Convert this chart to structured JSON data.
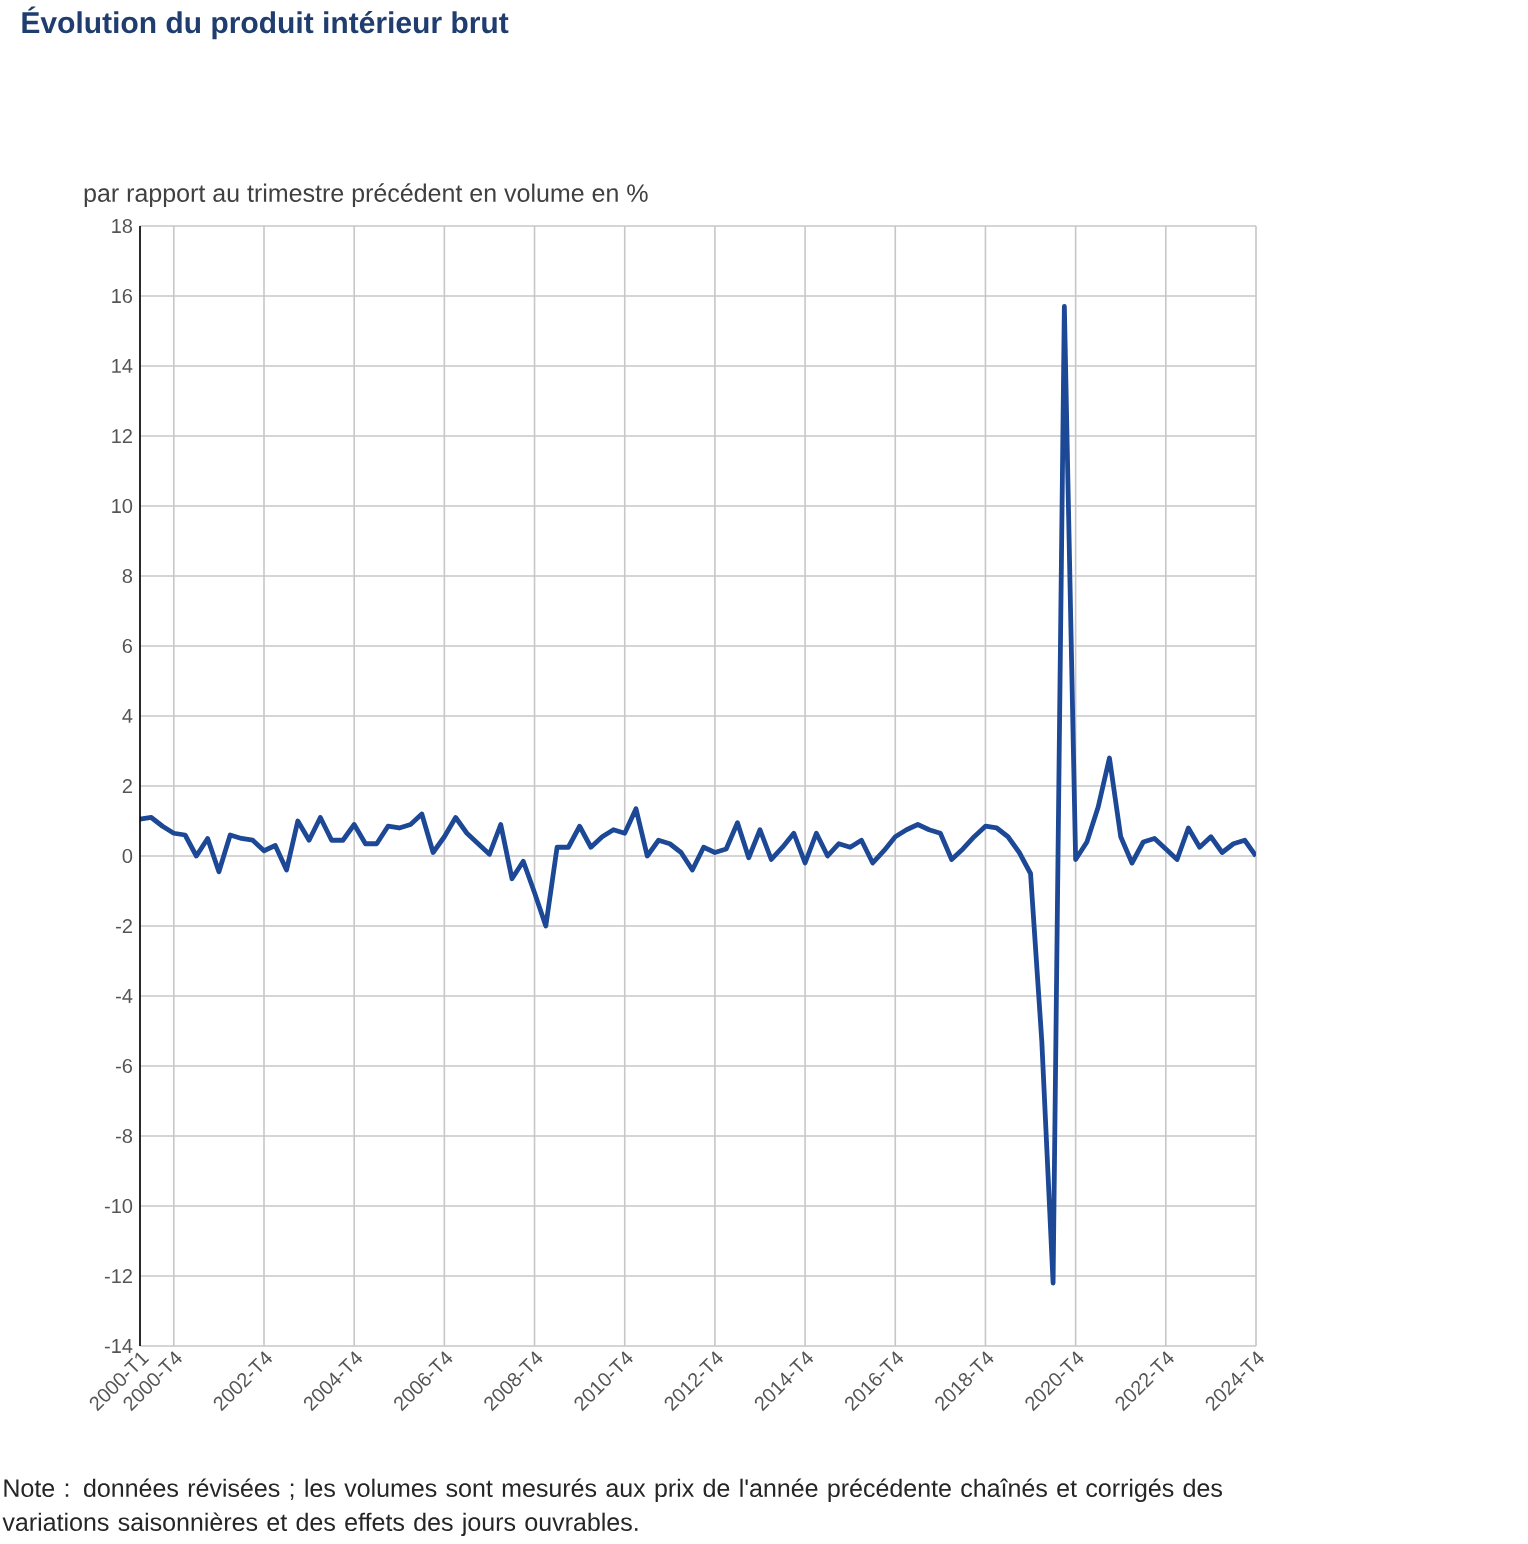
{
  "chart_data": {
    "type": "line",
    "title": "Évolution du produit intérieur brut",
    "ylabel": "par rapport au trimestre précédent en volume en %",
    "categories": [
      "2000-T1",
      null,
      null,
      "2000-T4",
      null,
      null,
      null,
      null,
      null,
      null,
      null,
      "2002-T4",
      null,
      null,
      null,
      null,
      null,
      null,
      null,
      "2004-T4",
      null,
      null,
      null,
      null,
      null,
      null,
      null,
      "2006-T4",
      null,
      null,
      null,
      null,
      null,
      null,
      null,
      "2008-T4",
      null,
      null,
      null,
      null,
      null,
      null,
      null,
      "2010-T4",
      null,
      null,
      null,
      null,
      null,
      null,
      null,
      "2012-T4",
      null,
      null,
      null,
      null,
      null,
      null,
      null,
      "2014-T4",
      null,
      null,
      null,
      null,
      null,
      null,
      null,
      "2016-T4",
      null,
      null,
      null,
      null,
      null,
      null,
      null,
      "2018-T4",
      null,
      null,
      null,
      null,
      null,
      null,
      null,
      "2020-T4",
      null,
      null,
      null,
      null,
      null,
      null,
      null,
      "2022-T4",
      null,
      null,
      null,
      null,
      null,
      null,
      null,
      "2024-T4"
    ],
    "values": [
      1.05,
      1.1,
      0.85,
      0.65,
      0.6,
      0.0,
      0.5,
      -0.45,
      0.6,
      0.5,
      0.45,
      0.15,
      0.3,
      -0.4,
      1.0,
      0.45,
      1.1,
      0.45,
      0.45,
      0.9,
      0.35,
      0.35,
      0.85,
      0.8,
      0.9,
      1.2,
      0.1,
      0.55,
      1.1,
      0.65,
      0.35,
      0.05,
      0.9,
      -0.65,
      -0.15,
      -1.05,
      -2.0,
      0.25,
      0.25,
      0.85,
      0.25,
      0.55,
      0.75,
      0.65,
      1.35,
      0.0,
      0.45,
      0.35,
      0.1,
      -0.4,
      0.25,
      0.1,
      0.2,
      0.95,
      -0.05,
      0.75,
      -0.1,
      0.25,
      0.65,
      -0.2,
      0.65,
      0.0,
      0.35,
      0.25,
      0.45,
      -0.2,
      0.15,
      0.55,
      0.75,
      0.9,
      0.75,
      0.65,
      -0.1,
      0.2,
      0.55,
      0.85,
      0.8,
      0.55,
      0.1,
      -0.5,
      -5.3,
      -12.2,
      15.7,
      -0.1,
      0.4,
      1.4,
      2.8,
      0.55,
      -0.2,
      0.4,
      0.5,
      0.2,
      -0.1,
      0.8,
      0.25,
      0.55,
      0.1,
      0.35,
      0.45,
      0.0
    ],
    "color": "#1c4896",
    "ylim": [
      -14,
      18
    ],
    "yticks": [
      -14,
      -12,
      -10,
      -8,
      -6,
      -4,
      -2,
      0,
      2,
      4,
      6,
      8,
      10,
      12,
      14,
      16,
      18
    ],
    "grid": true,
    "annotations": [
      "Note : données révisées ; les volumes sont mesurés aux prix de l'année précédente chaînés et corrigés des variations saisonnières et des effets des jours ouvrables."
    ]
  }
}
